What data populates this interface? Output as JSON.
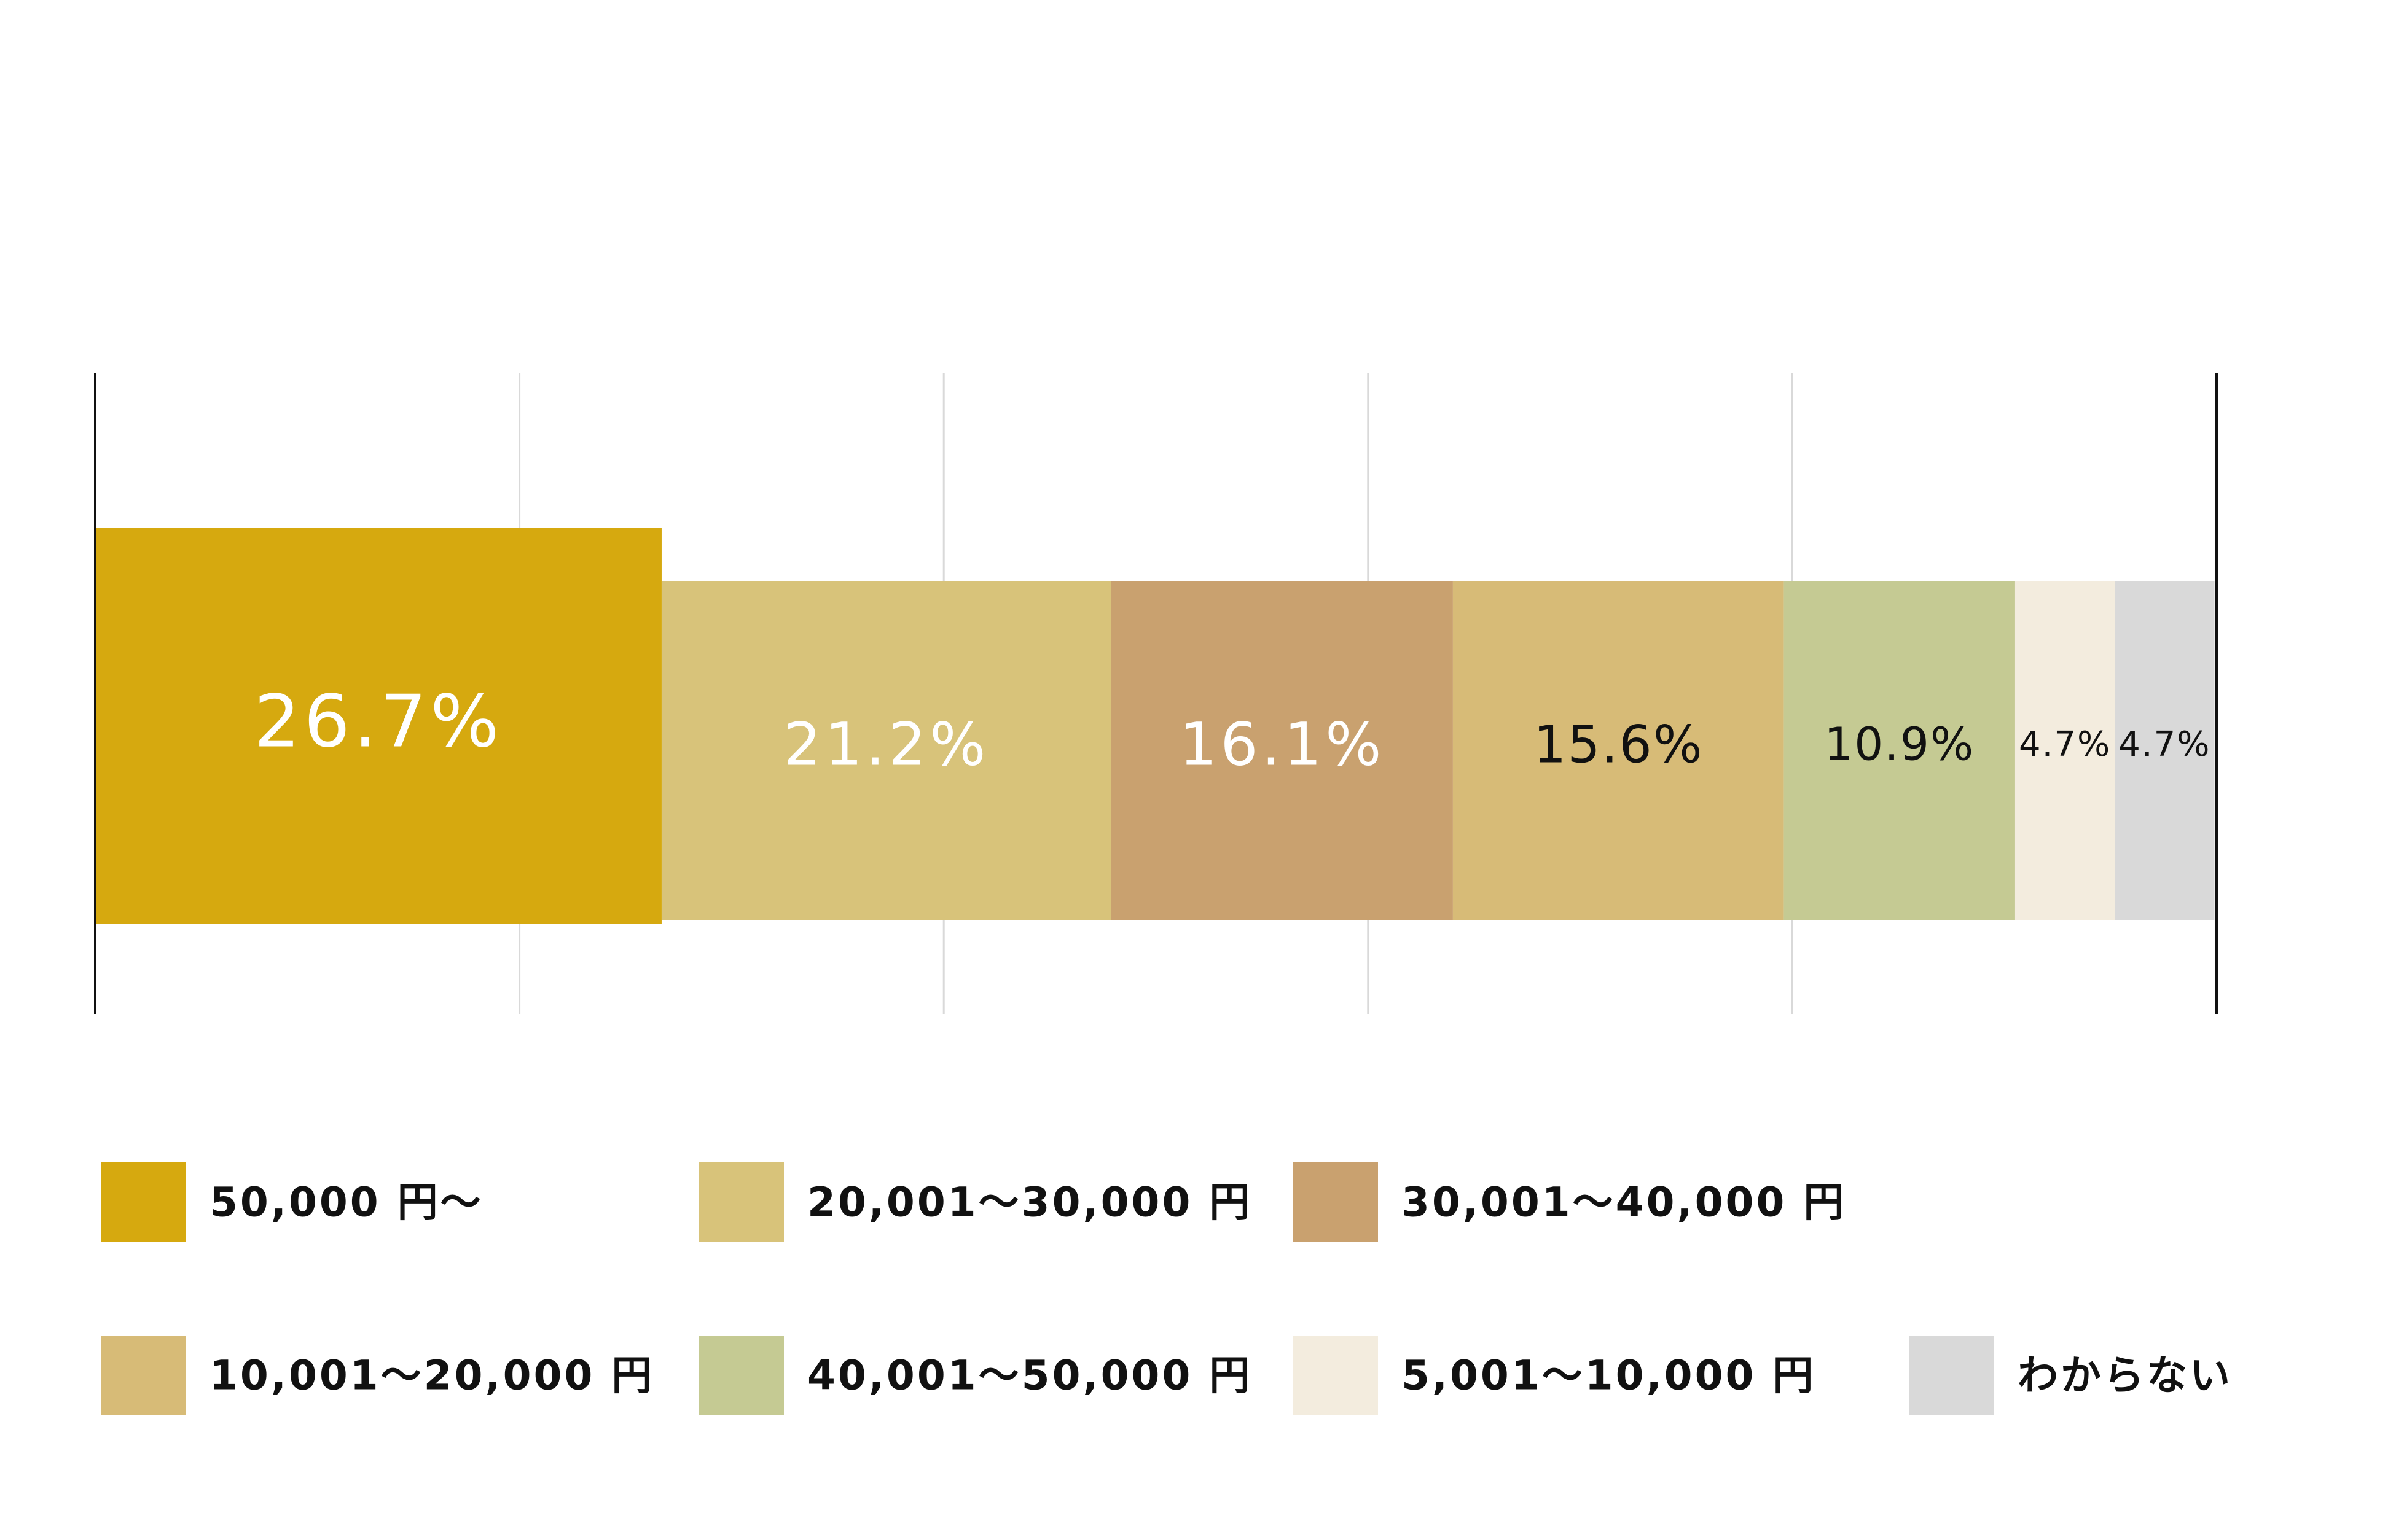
{
  "chart_data": {
    "type": "bar",
    "orientation": "horizontal-stacked",
    "title": "",
    "xlabel": "",
    "ylabel": "",
    "xlim": [
      0,
      100
    ],
    "grid": true,
    "legend_position": "bottom",
    "series": [
      {
        "name": "50,000円〜",
        "value": 26.7,
        "label": "26.7%",
        "color": "#d6a90f",
        "label_color": "#ffffff",
        "emphasized": true
      },
      {
        "name": "20,001〜30,000円",
        "value": 21.2,
        "label": "21.2%",
        "color": "#d8c37a",
        "label_color": "#ffffff"
      },
      {
        "name": "30,001〜40,000円",
        "value": 16.1,
        "label": "16.1%",
        "color": "#c9a16f",
        "label_color": "#ffffff"
      },
      {
        "name": "10,001〜20,000円",
        "value": 15.6,
        "label": "15.6%",
        "color": "#d7bb77",
        "label_color": "#111111"
      },
      {
        "name": "40,001〜50,000円",
        "value": 10.9,
        "label": "10.9%",
        "color": "#c5ca93",
        "label_color": "#111111"
      },
      {
        "name": "5,001〜10,000円",
        "value": 4.7,
        "label": "4.7%",
        "color": "#f3ecde",
        "label_color": "#111111"
      },
      {
        "name": "わからない",
        "value": 4.7,
        "label": "4.7%",
        "color": "#d9d9d9",
        "label_color": "#111111"
      }
    ],
    "legend": [
      {
        "label": "50,000 円〜",
        "color": "#d6a90f"
      },
      {
        "label": "20,001〜30,000 円",
        "color": "#d8c37a"
      },
      {
        "label": "30,001〜40,000 円",
        "color": "#c9a16f"
      },
      {
        "label": "10,001〜20,000 円",
        "color": "#d7bb77"
      },
      {
        "label": "40,001〜50,000 円",
        "color": "#c5ca93"
      },
      {
        "label": "5,001〜10,000 円",
        "color": "#f3ecde"
      },
      {
        "label": "わからない",
        "color": "#d9d9d9"
      }
    ]
  }
}
